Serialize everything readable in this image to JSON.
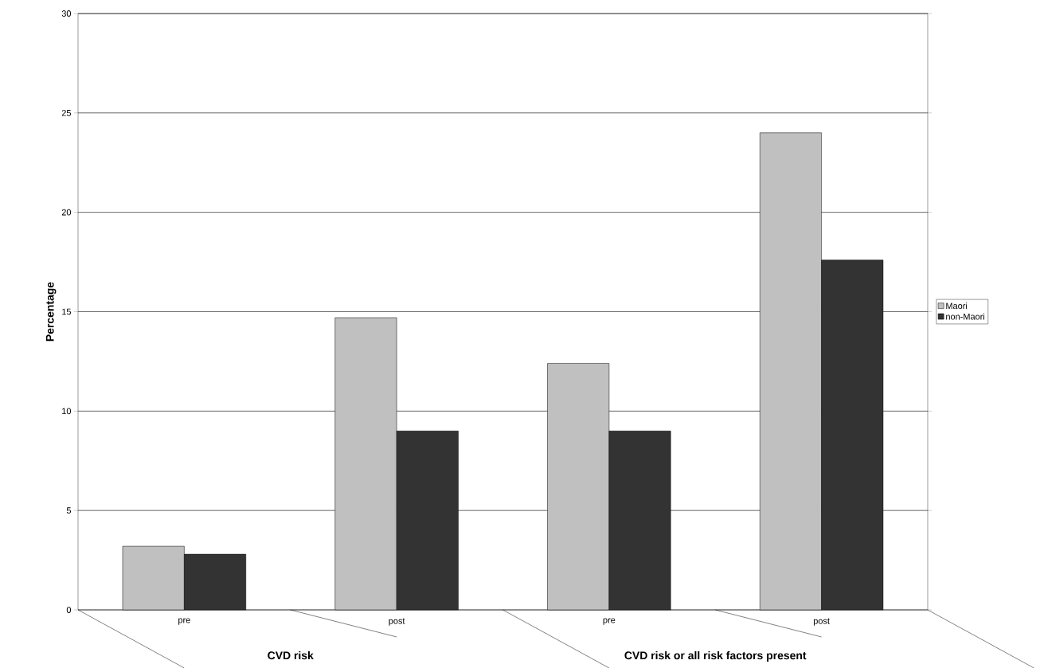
{
  "chart_data": {
    "type": "bar",
    "ylabel": "Percentage",
    "categories": [
      "pre",
      "post",
      "pre",
      "post"
    ],
    "annotations": [
      "CVD risk",
      "CVD risk or all risk factors present"
    ],
    "series": [
      {
        "name": "Maori",
        "color": "#c0c0c0",
        "values": [
          3.2,
          14.7,
          12.4,
          24.0
        ]
      },
      {
        "name": "non-Maori",
        "color": "#333333",
        "values": [
          2.8,
          9.0,
          9.0,
          17.6
        ]
      }
    ],
    "ylim": [
      0,
      30
    ],
    "yticks": [
      0,
      5,
      10,
      15,
      20,
      25,
      30
    ],
    "grid": "y",
    "legend": "right"
  }
}
